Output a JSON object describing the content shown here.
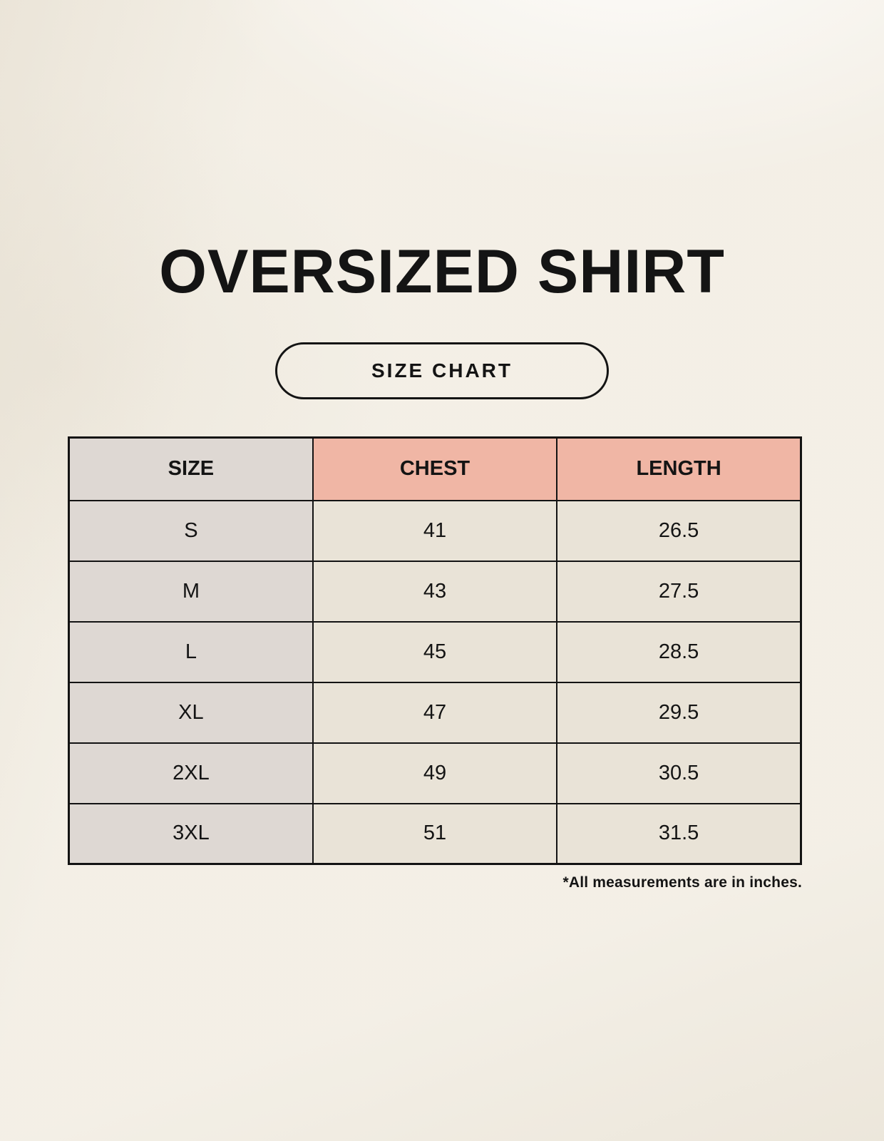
{
  "page": {
    "title": "OVERSIZED SHIRT",
    "badge_label": "SIZE CHART",
    "footnote": "*All measurements are in inches."
  },
  "table": {
    "headers": [
      "SIZE",
      "CHEST",
      "LENGTH"
    ],
    "rows": [
      [
        "S",
        "41",
        "26.5"
      ],
      [
        "M",
        "43",
        "27.5"
      ],
      [
        "L",
        "45",
        "28.5"
      ],
      [
        "XL",
        "47",
        "29.5"
      ],
      [
        "2XL",
        "49",
        "30.5"
      ],
      [
        "3XL",
        "51",
        "31.5"
      ]
    ]
  },
  "colors": {
    "page_background": "#f8f5ee",
    "size_column_background": "#ded8d3",
    "accent_header_background": "#f0b6a5",
    "data_cell_background": "#e9e3d7",
    "border": "#131313",
    "text": "#141414"
  },
  "chart_data": {
    "type": "table",
    "title": "OVERSIZED SHIRT",
    "columns": [
      "SIZE",
      "CHEST",
      "LENGTH"
    ],
    "rows": [
      [
        "S",
        41,
        26.5
      ],
      [
        "M",
        43,
        27.5
      ],
      [
        "L",
        45,
        28.5
      ],
      [
        "XL",
        47,
        29.5
      ],
      [
        "2XL",
        49,
        30.5
      ],
      [
        "3XL",
        51,
        31.5
      ]
    ],
    "units": "inches"
  }
}
